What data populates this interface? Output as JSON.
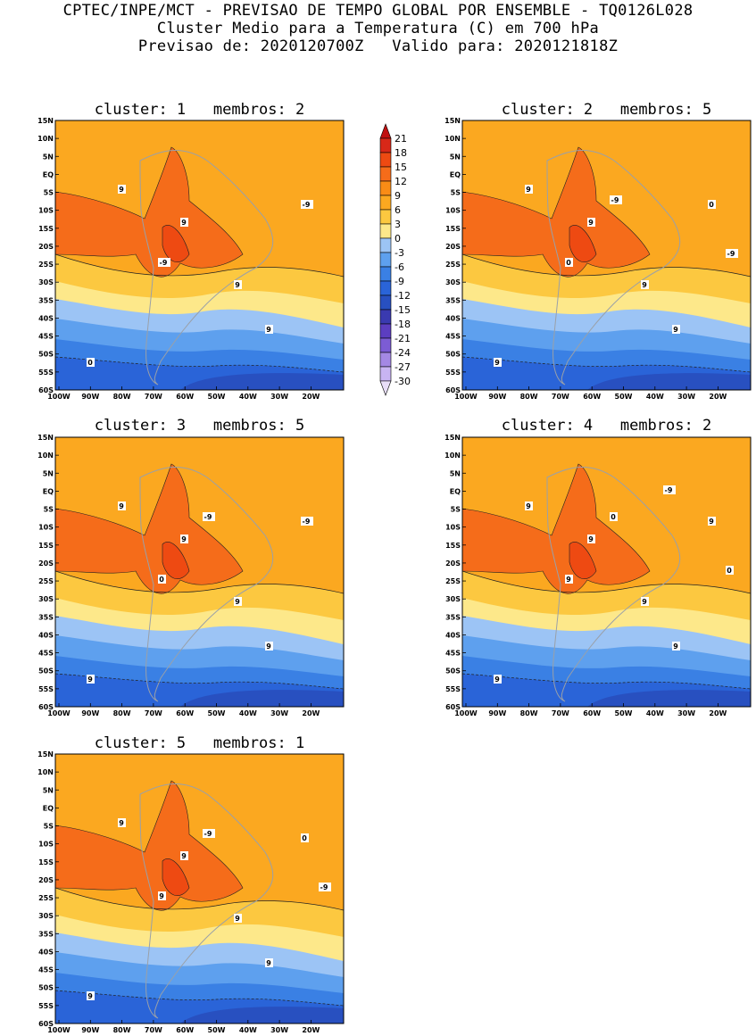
{
  "header": {
    "line1": "CPTEC/INPE/MCT - PREVISAO DE TEMPO GLOBAL POR ENSEMBLE - TQ0126L028",
    "line2": "Cluster Medio para a Temperatura (C) em 700 hPa",
    "line3": "Previsao de: 2020120700Z   Valido para: 2020121818Z"
  },
  "axes": {
    "lat_labels": [
      "15N",
      "10N",
      "5N",
      "EQ",
      "5S",
      "10S",
      "15S",
      "20S",
      "25S",
      "30S",
      "35S",
      "40S",
      "45S",
      "50S",
      "55S",
      "60S"
    ],
    "lon_labels": [
      "100W",
      "90W",
      "80W",
      "70W",
      "60W",
      "50W",
      "40W",
      "30W",
      "20W"
    ]
  },
  "colorbar": {
    "labels": [
      "21",
      "18",
      "15",
      "12",
      "9",
      "6",
      "3",
      "0",
      "-3",
      "-6",
      "-9",
      "-12",
      "-15",
      "-18",
      "-21",
      "-24",
      "-27",
      "-30"
    ],
    "colors": [
      "#c01010",
      "#d82818",
      "#ee4a12",
      "#f56c1a",
      "#f98c16",
      "#fba820",
      "#fcc840",
      "#fde88a",
      "#9cc4f5",
      "#5ea0ee",
      "#3a80e4",
      "#2a64d8",
      "#2850c0",
      "#3a3ab0",
      "#5c3ec0",
      "#7c5cd4",
      "#a488e4",
      "#c8b4f2",
      "#e8def8"
    ]
  },
  "panels": [
    {
      "title": "cluster: 1   membros: 2",
      "contour_labels": [
        "9",
        "9",
        "9",
        "9",
        "0",
        "-9",
        "-9"
      ]
    },
    {
      "title": "cluster: 2   membros: 5",
      "contour_labels": [
        "9",
        "9",
        "9",
        "9",
        "9",
        "0",
        "0",
        "-9",
        "-9"
      ]
    },
    {
      "title": "cluster: 3   membros: 5",
      "contour_labels": [
        "9",
        "9",
        "9",
        "9",
        "9",
        "0",
        "-9",
        "-9"
      ]
    },
    {
      "title": "cluster: 4   membros: 2",
      "contour_labels": [
        "9",
        "9",
        "9",
        "9",
        "9",
        "9",
        "9",
        "0",
        "0",
        "-9"
      ]
    },
    {
      "title": "cluster: 5   membros: 1",
      "contour_labels": [
        "9",
        "9",
        "9",
        "9",
        "9",
        "9",
        "0",
        "-9",
        "-9"
      ]
    }
  ]
}
